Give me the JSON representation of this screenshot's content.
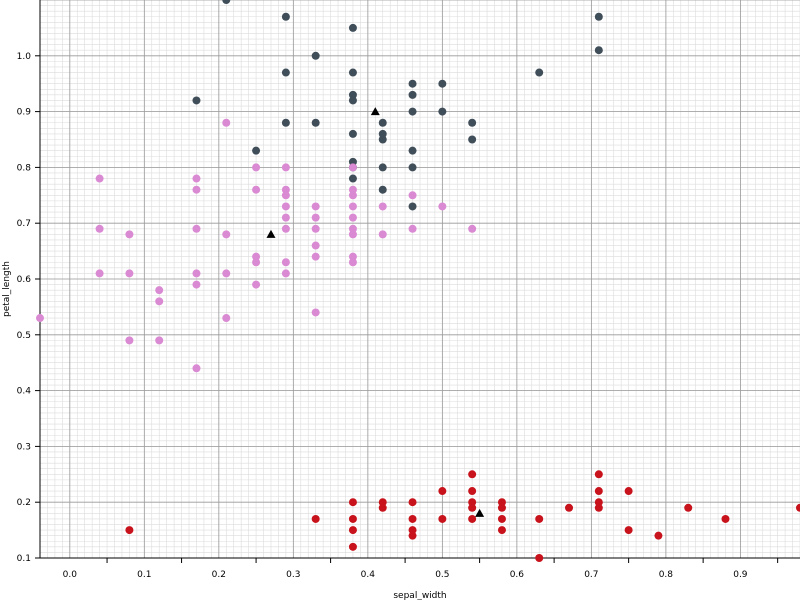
{
  "chart_data": {
    "type": "scatter",
    "title": "",
    "xlabel": "sepal_width",
    "ylabel": "petal_length",
    "xlim": [
      -0.04,
      0.98
    ],
    "ylim": [
      0.1,
      1.1
    ],
    "xticks": [
      0.0,
      0.1,
      0.2,
      0.3,
      0.4,
      0.5,
      0.6,
      0.7,
      0.8,
      0.9
    ],
    "xtick_labels": [
      "0.0",
      "0.1",
      "0.2",
      "0.3",
      "0.4",
      "0.5",
      "0.6",
      "0.7",
      "0.8",
      "0.9"
    ],
    "yticks": [
      0.1,
      0.2,
      0.3,
      0.4,
      0.5,
      0.6,
      0.7,
      0.8,
      0.9,
      1.0
    ],
    "ytick_labels": [
      "0.1",
      "0.2",
      "0.3",
      "0.4",
      "0.5",
      "0.6",
      "0.7",
      "0.8",
      "0.9",
      "1.0"
    ],
    "grid": true,
    "legend": "none",
    "series": [
      {
        "color": "#404e5a",
        "marker": "circle",
        "points": [
          [
            0.21,
            1.1
          ],
          [
            0.29,
            1.07
          ],
          [
            0.38,
            1.05
          ],
          [
            0.71,
            1.07
          ],
          [
            0.71,
            1.01
          ],
          [
            0.33,
            1.0
          ],
          [
            0.29,
            0.97
          ],
          [
            0.38,
            0.97
          ],
          [
            0.63,
            0.97
          ],
          [
            0.46,
            0.95
          ],
          [
            0.5,
            0.95
          ],
          [
            0.38,
            0.93
          ],
          [
            0.46,
            0.93
          ],
          [
            0.17,
            0.92
          ],
          [
            0.38,
            0.92
          ],
          [
            0.29,
            0.88
          ],
          [
            0.33,
            0.88
          ],
          [
            0.42,
            0.88
          ],
          [
            0.46,
            0.9
          ],
          [
            0.5,
            0.9
          ],
          [
            0.54,
            0.88
          ],
          [
            0.38,
            0.86
          ],
          [
            0.42,
            0.86
          ],
          [
            0.42,
            0.85
          ],
          [
            0.54,
            0.85
          ],
          [
            0.25,
            0.83
          ],
          [
            0.46,
            0.83
          ],
          [
            0.38,
            0.81
          ],
          [
            0.38,
            0.8
          ],
          [
            0.42,
            0.8
          ],
          [
            0.46,
            0.8
          ],
          [
            0.38,
            0.78
          ],
          [
            0.42,
            0.76
          ],
          [
            0.46,
            0.73
          ]
        ]
      },
      {
        "color": "#d98ad2",
        "marker": "circle",
        "points": [
          [
            0.04,
            0.78
          ],
          [
            0.17,
            0.78
          ],
          [
            0.21,
            0.88
          ],
          [
            0.25,
            0.8
          ],
          [
            0.29,
            0.8
          ],
          [
            0.38,
            0.8
          ],
          [
            0.17,
            0.76
          ],
          [
            0.25,
            0.76
          ],
          [
            0.29,
            0.76
          ],
          [
            0.38,
            0.76
          ],
          [
            0.29,
            0.75
          ],
          [
            0.38,
            0.75
          ],
          [
            0.46,
            0.75
          ],
          [
            0.29,
            0.73
          ],
          [
            0.33,
            0.73
          ],
          [
            0.38,
            0.73
          ],
          [
            0.42,
            0.73
          ],
          [
            0.5,
            0.73
          ],
          [
            0.29,
            0.71
          ],
          [
            0.33,
            0.71
          ],
          [
            0.38,
            0.71
          ],
          [
            0.04,
            0.69
          ],
          [
            0.17,
            0.69
          ],
          [
            0.29,
            0.69
          ],
          [
            0.33,
            0.69
          ],
          [
            0.38,
            0.69
          ],
          [
            0.46,
            0.69
          ],
          [
            0.54,
            0.69
          ],
          [
            0.08,
            0.68
          ],
          [
            0.21,
            0.68
          ],
          [
            0.38,
            0.68
          ],
          [
            0.42,
            0.68
          ],
          [
            0.33,
            0.66
          ],
          [
            0.25,
            0.64
          ],
          [
            0.33,
            0.64
          ],
          [
            0.38,
            0.64
          ],
          [
            0.25,
            0.63
          ],
          [
            0.29,
            0.63
          ],
          [
            0.38,
            0.63
          ],
          [
            0.04,
            0.61
          ],
          [
            0.08,
            0.61
          ],
          [
            0.17,
            0.61
          ],
          [
            0.21,
            0.61
          ],
          [
            0.29,
            0.61
          ],
          [
            0.17,
            0.59
          ],
          [
            0.25,
            0.59
          ],
          [
            0.12,
            0.58
          ],
          [
            0.12,
            0.56
          ],
          [
            0.33,
            0.54
          ],
          [
            -0.04,
            0.53
          ],
          [
            0.21,
            0.53
          ],
          [
            0.08,
            0.49
          ],
          [
            0.12,
            0.49
          ],
          [
            0.17,
            0.44
          ]
        ]
      },
      {
        "color": "#c8131c",
        "marker": "circle",
        "points": [
          [
            0.54,
            0.25
          ],
          [
            0.71,
            0.25
          ],
          [
            0.5,
            0.22
          ],
          [
            0.54,
            0.22
          ],
          [
            0.71,
            0.22
          ],
          [
            0.75,
            0.22
          ],
          [
            0.38,
            0.2
          ],
          [
            0.42,
            0.2
          ],
          [
            0.46,
            0.2
          ],
          [
            0.54,
            0.2
          ],
          [
            0.58,
            0.2
          ],
          [
            0.71,
            0.2
          ],
          [
            0.42,
            0.19
          ],
          [
            0.54,
            0.19
          ],
          [
            0.58,
            0.19
          ],
          [
            0.67,
            0.19
          ],
          [
            0.71,
            0.19
          ],
          [
            0.83,
            0.19
          ],
          [
            0.98,
            0.19
          ],
          [
            0.33,
            0.17
          ],
          [
            0.38,
            0.17
          ],
          [
            0.46,
            0.17
          ],
          [
            0.5,
            0.17
          ],
          [
            0.54,
            0.17
          ],
          [
            0.58,
            0.17
          ],
          [
            0.63,
            0.17
          ],
          [
            0.88,
            0.17
          ],
          [
            0.08,
            0.15
          ],
          [
            0.38,
            0.15
          ],
          [
            0.46,
            0.15
          ],
          [
            0.58,
            0.15
          ],
          [
            0.75,
            0.15
          ],
          [
            0.46,
            0.14
          ],
          [
            0.79,
            0.14
          ],
          [
            0.38,
            0.12
          ],
          [
            0.63,
            0.1
          ]
        ]
      },
      {
        "color": "#000000",
        "marker": "triangle",
        "points": [
          [
            0.41,
            0.9
          ],
          [
            0.27,
            0.68
          ],
          [
            0.55,
            0.18
          ]
        ]
      }
    ]
  }
}
